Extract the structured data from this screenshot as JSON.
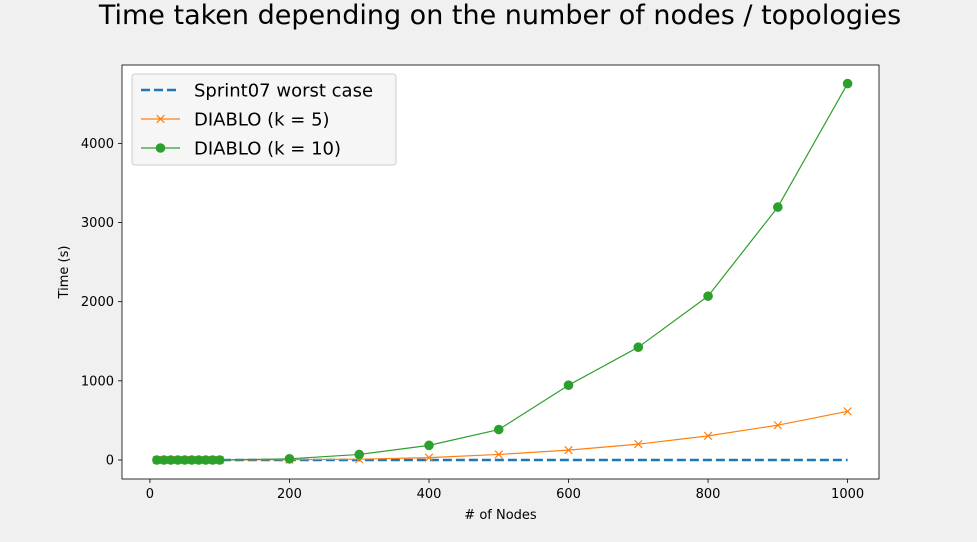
{
  "chart_data": {
    "type": "line",
    "title": "Time taken depending on the number of nodes / topologies",
    "xlabel": "# of Nodes",
    "ylabel": "Time (s)",
    "xlim": [
      -40,
      1045
    ],
    "ylim": [
      -240,
      4990
    ],
    "xticks": [
      0,
      200,
      400,
      600,
      800,
      1000
    ],
    "yticks": [
      0,
      1000,
      2000,
      3000,
      4000
    ],
    "grid": false,
    "legend_position": "top-left",
    "series": [
      {
        "name": "Sprint07 worst case",
        "color": "#1f77b4",
        "style": "dashed",
        "marker": "none",
        "x": [
          10,
          20,
          30,
          40,
          50,
          60,
          70,
          80,
          90,
          100,
          200,
          300,
          400,
          500,
          600,
          700,
          800,
          900,
          1000
        ],
        "values": [
          0,
          0,
          0,
          0,
          0,
          0,
          0,
          0,
          0,
          0,
          0,
          0,
          0,
          0,
          0,
          0,
          0,
          0,
          0
        ]
      },
      {
        "name": "DIABLO (k = 5)",
        "color": "#ff7f0e",
        "style": "solid",
        "marker": "x",
        "x": [
          10,
          20,
          30,
          40,
          50,
          60,
          70,
          80,
          90,
          100,
          200,
          300,
          400,
          500,
          600,
          700,
          800,
          900,
          1000
        ],
        "values": [
          0,
          0,
          0,
          0,
          0,
          0,
          0,
          0,
          0,
          0,
          5,
          10,
          30,
          70,
          125,
          200,
          305,
          440,
          615
        ]
      },
      {
        "name": "DIABLO (k = 10)",
        "color": "#2ca02c",
        "style": "solid",
        "marker": "circle",
        "x": [
          10,
          20,
          30,
          40,
          50,
          60,
          70,
          80,
          90,
          100,
          200,
          300,
          400,
          500,
          600,
          700,
          800,
          900,
          1000
        ],
        "values": [
          0,
          0,
          0,
          0,
          0,
          0,
          0,
          0,
          0,
          0,
          15,
          70,
          185,
          385,
          945,
          1425,
          2070,
          3195,
          4755
        ]
      }
    ]
  }
}
